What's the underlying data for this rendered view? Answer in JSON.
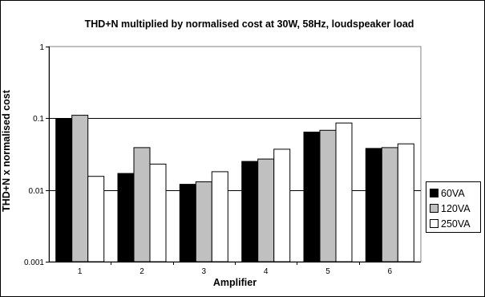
{
  "chart_data": {
    "type": "bar",
    "title": "THD+N multiplied by normalised cost at 30W, 58Hz, loudspeaker load",
    "xlabel": "Amplifier",
    "ylabel": "THD+N x normalised cost",
    "yscale": "log",
    "ylim": [
      0.001,
      1
    ],
    "ytick_labels": [
      "1",
      "0.1",
      "0.01",
      "0.001"
    ],
    "yticks": [
      1,
      0.1,
      0.01,
      0.001
    ],
    "categories": [
      "1",
      "2",
      "3",
      "4",
      "5",
      "6"
    ],
    "grid": "horizontal",
    "legend_position": "right",
    "series": [
      {
        "name": "60VA",
        "color": "#000000",
        "values": [
          0.097,
          0.017,
          0.012,
          0.025,
          0.064,
          0.038
        ]
      },
      {
        "name": "120VA",
        "color": "#c0c0c0",
        "values": [
          0.11,
          0.039,
          0.013,
          0.027,
          0.068,
          0.039
        ]
      },
      {
        "name": "250VA",
        "color": "#ffffff",
        "values": [
          0.0155,
          0.023,
          0.018,
          0.037,
          0.086,
          0.044
        ]
      }
    ]
  }
}
